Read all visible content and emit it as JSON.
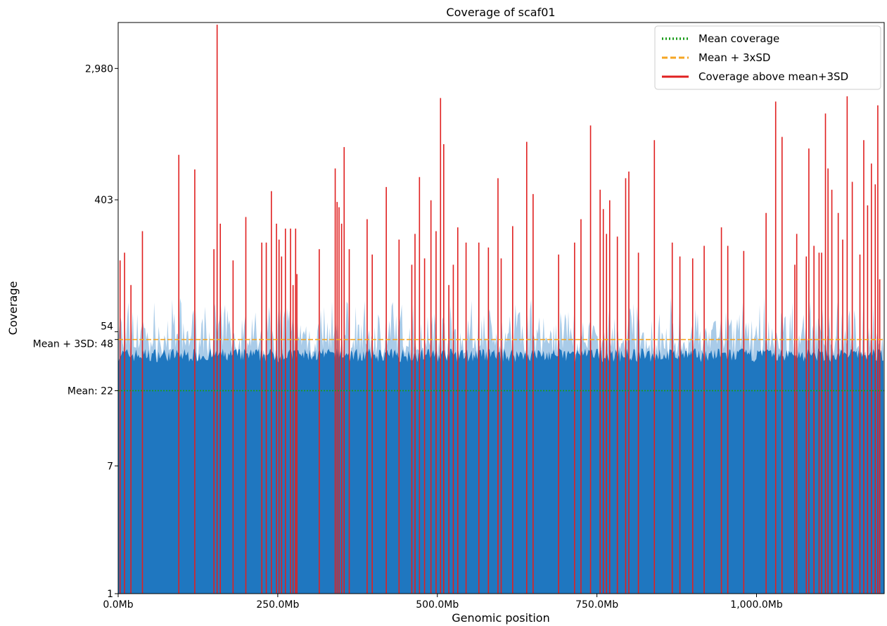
{
  "chart_data": {
    "type": "bar",
    "title": "Coverage of scaf01",
    "xlabel": "Genomic position",
    "ylabel": "Coverage",
    "x_unit": "Mb",
    "xlim": [
      0,
      1200
    ],
    "ylim": [
      1,
      6000
    ],
    "y_scale": "log",
    "x_ticks": [
      0,
      250,
      500,
      750,
      1000
    ],
    "x_tick_labels": [
      "0.0Mb",
      "250.0Mb",
      "500.0Mb",
      "750.0Mb",
      "1,000.0Mb"
    ],
    "y_ticks": [
      1,
      7,
      22,
      48,
      54,
      403,
      2980
    ],
    "y_tick_labels": [
      "1",
      "7",
      "Mean: 22",
      "Mean + 3SD: 48",
      "54",
      "403",
      "2,980"
    ],
    "mean_coverage": 22,
    "mean_plus_3sd": 48,
    "grid": false,
    "legend_position": "top-right",
    "series": [
      {
        "name": "Mean coverage",
        "kind": "hline",
        "value": 22,
        "style": "dotted",
        "color": "#1a9c1a"
      },
      {
        "name": "Mean + 3xSD",
        "kind": "hline",
        "value": 48,
        "style": "dashed",
        "color": "#f5a623"
      },
      {
        "name": "Coverage above mean+3SD",
        "kind": "spikes",
        "color": "#e02020",
        "x": [
          3,
          10,
          20,
          38,
          95,
          120,
          150,
          155,
          160,
          180,
          200,
          225,
          232,
          240,
          248,
          252,
          256,
          262,
          270,
          274,
          278,
          280,
          315,
          340,
          343,
          346,
          350,
          354,
          362,
          390,
          398,
          420,
          440,
          460,
          465,
          472,
          480,
          490,
          498,
          505,
          510,
          518,
          525,
          532,
          545,
          565,
          580,
          595,
          600,
          618,
          640,
          650,
          690,
          715,
          725,
          740,
          755,
          760,
          765,
          770,
          782,
          795,
          800,
          815,
          840,
          868,
          880,
          900,
          918,
          945,
          955,
          980,
          1015,
          1030,
          1040,
          1060,
          1063,
          1078,
          1082,
          1090,
          1098,
          1102,
          1108,
          1112,
          1118,
          1128,
          1135,
          1142,
          1150,
          1162,
          1168,
          1174,
          1180,
          1186,
          1190,
          1193
        ],
        "values": [
          160,
          180,
          110,
          250,
          800,
          640,
          190,
          5800,
          280,
          160,
          310,
          210,
          210,
          460,
          280,
          220,
          170,
          260,
          260,
          110,
          260,
          130,
          190,
          650,
          390,
          360,
          280,
          900,
          190,
          300,
          175,
          490,
          220,
          150,
          240,
          570,
          165,
          400,
          250,
          1900,
          940,
          110,
          150,
          265,
          210,
          210,
          195,
          560,
          165,
          270,
          975,
          440,
          175,
          210,
          300,
          1250,
          470,
          350,
          240,
          400,
          230,
          560,
          620,
          180,
          1000,
          210,
          170,
          165,
          200,
          265,
          200,
          185,
          330,
          1800,
          1050,
          150,
          240,
          170,
          880,
          200,
          180,
          180,
          1500,
          650,
          470,
          330,
          220,
          1950,
          530,
          175,
          1000,
          370,
          700,
          510,
          1700,
          120
        ]
      }
    ]
  }
}
